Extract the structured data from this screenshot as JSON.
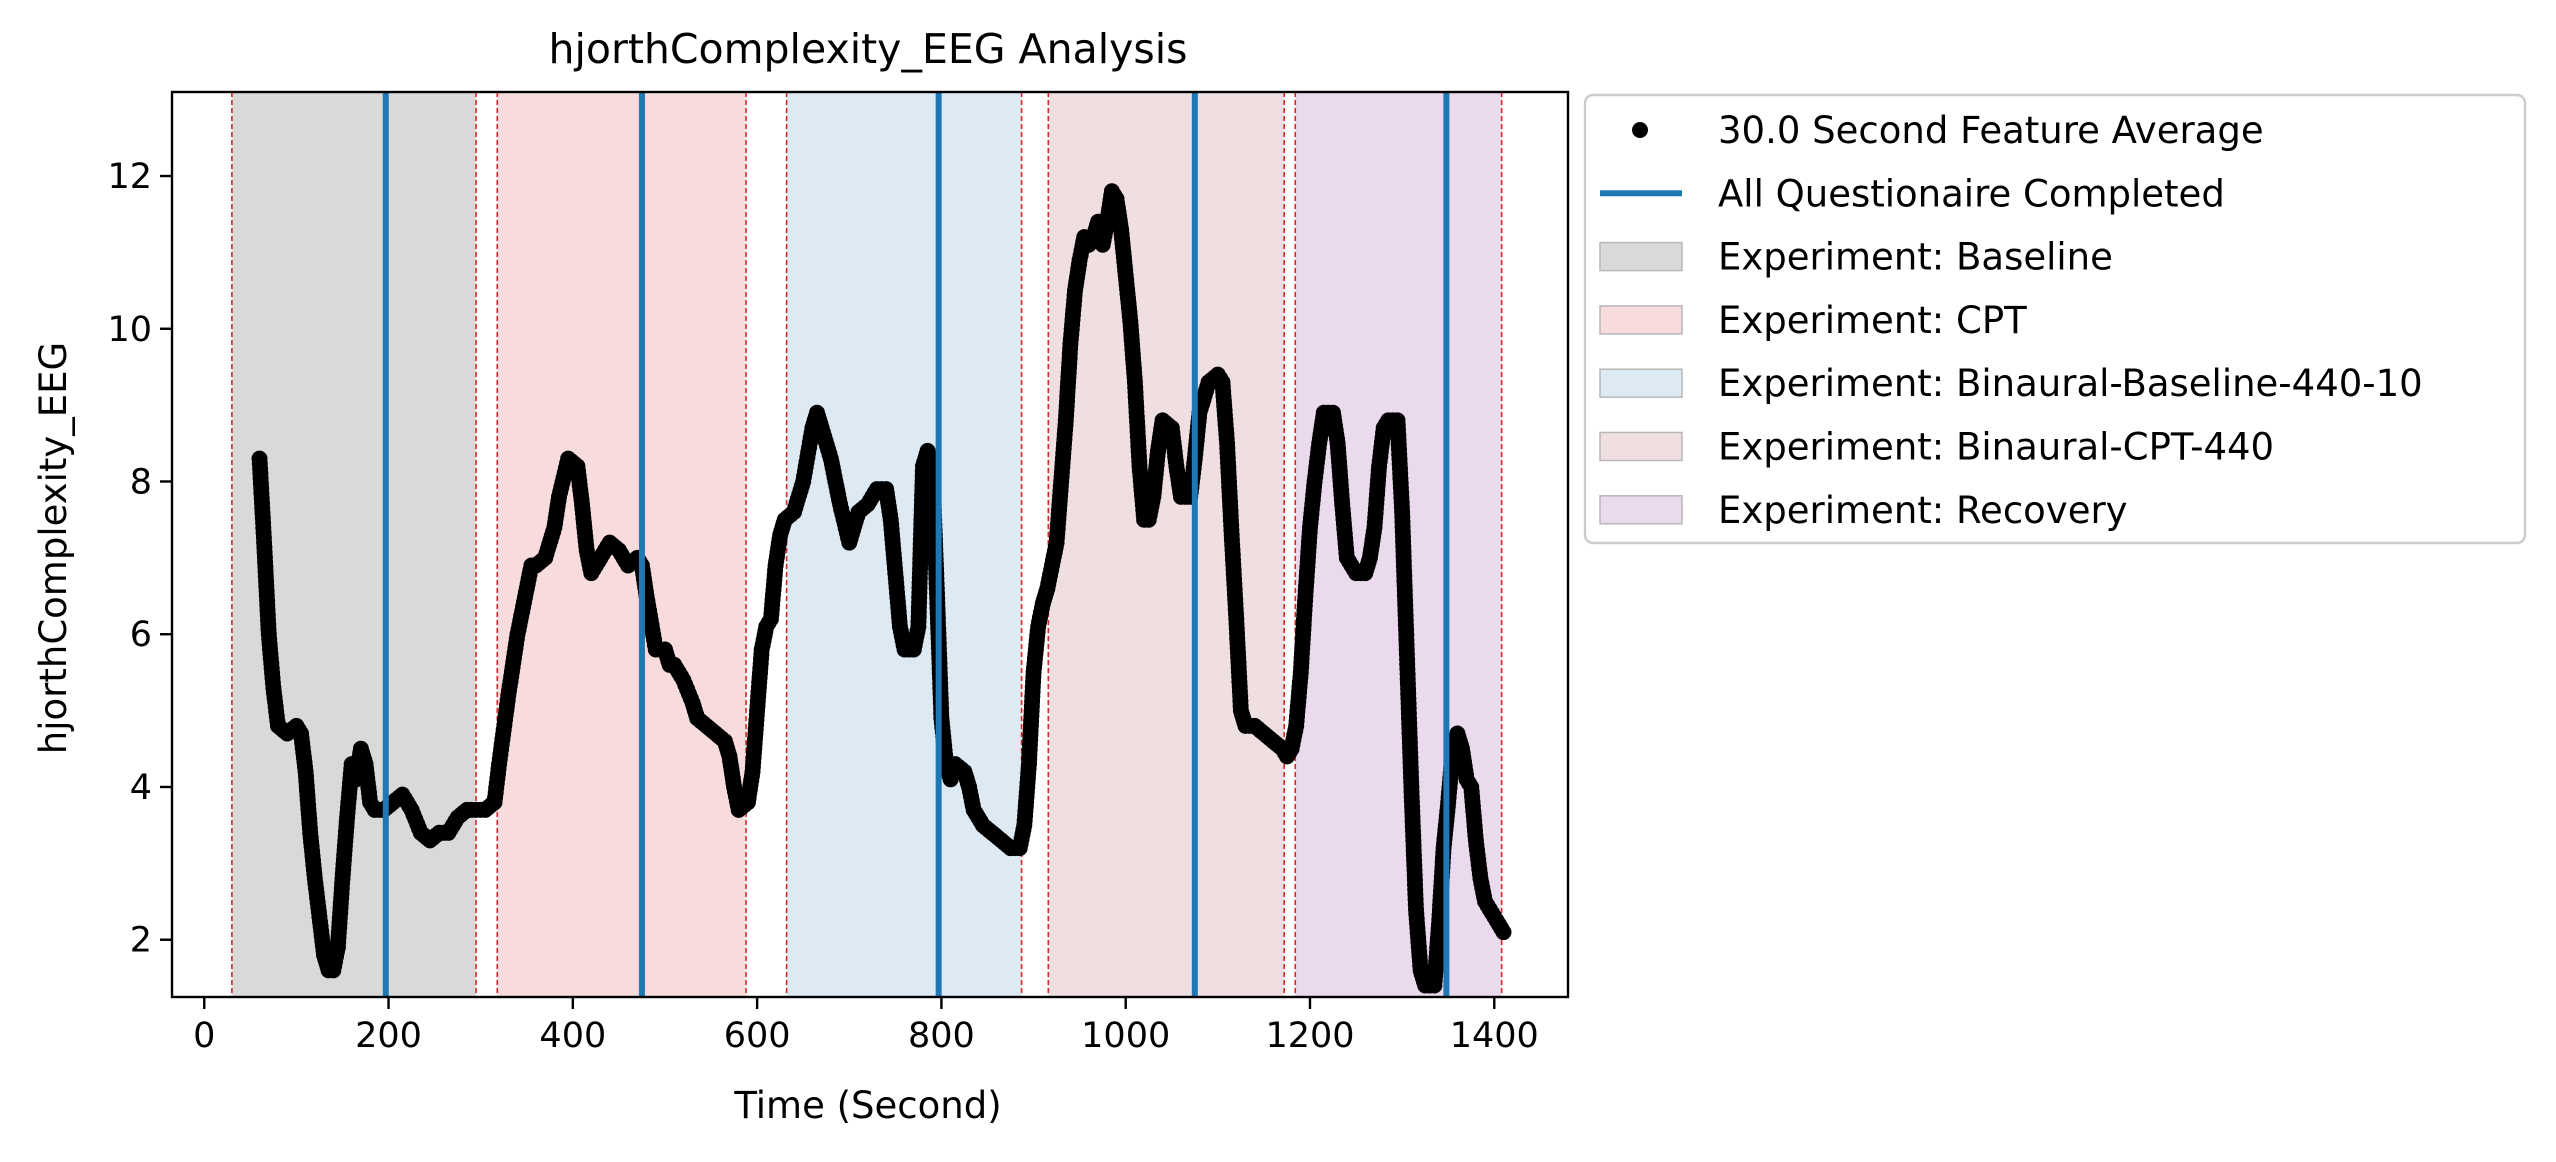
{
  "chart_data": {
    "type": "scatter",
    "title": "hjorthComplexity_EEG Analysis",
    "xlabel": "Time (Second)",
    "ylabel": "hjorthComplexity_EEG",
    "xlim": [
      -35,
      1480
    ],
    "ylim": [
      1.25,
      13.1
    ],
    "xticks": [
      0,
      200,
      400,
      600,
      800,
      1000,
      1200,
      1400
    ],
    "yticks": [
      2,
      4,
      6,
      8,
      10,
      12
    ],
    "grid": false,
    "legend": {
      "placement": "outside-upper-right",
      "entries": [
        {
          "label": "30.0 Second Feature Average",
          "kind": "marker",
          "color": "#000000"
        },
        {
          "label": "All Questionaire Completed",
          "kind": "line",
          "color": "#1f77b4"
        },
        {
          "label": "Experiment: Baseline",
          "kind": "patch",
          "color": "#d9d9d9"
        },
        {
          "label": "Experiment: CPT",
          "kind": "patch",
          "color": "#f8dcdd"
        },
        {
          "label": "Experiment: Binaural-Baseline-440-10",
          "kind": "patch",
          "color": "#dde9f3"
        },
        {
          "label": "Experiment: Binaural-CPT-440",
          "kind": "patch",
          "color": "#efdfe0"
        },
        {
          "label": "Experiment: Recovery",
          "kind": "patch",
          "color": "#ebdaee"
        }
      ]
    },
    "phases": [
      {
        "name": "Experiment: Baseline",
        "start": 30,
        "end": 295,
        "color": "#d9d9d9"
      },
      {
        "name": "Experiment: CPT",
        "start": 318,
        "end": 588,
        "color": "#f8dcdd"
      },
      {
        "name": "Experiment: Binaural-Baseline-440-10",
        "start": 632,
        "end": 887,
        "color": "#dde9f3"
      },
      {
        "name": "Experiment: Binaural-CPT-440",
        "start": 916,
        "end": 1172,
        "color": "#efdfe0"
      },
      {
        "name": "Experiment: Recovery",
        "start": 1184,
        "end": 1408,
        "color": "#ebdaee"
      }
    ],
    "questionnaire_completed": [
      197,
      475,
      797,
      1075,
      1348
    ],
    "series": [
      {
        "name": "30.0 Second Feature Average",
        "color": "#000000",
        "points": [
          [
            60,
            8.3
          ],
          [
            65,
            7.2
          ],
          [
            70,
            6.0
          ],
          [
            75,
            5.3
          ],
          [
            80,
            4.8
          ],
          [
            90,
            4.7
          ],
          [
            100,
            4.8
          ],
          [
            105,
            4.7
          ],
          [
            110,
            4.2
          ],
          [
            115,
            3.4
          ],
          [
            120,
            2.8
          ],
          [
            125,
            2.3
          ],
          [
            130,
            1.8
          ],
          [
            135,
            1.6
          ],
          [
            140,
            1.6
          ],
          [
            145,
            1.9
          ],
          [
            150,
            2.8
          ],
          [
            155,
            3.6
          ],
          [
            160,
            4.3
          ],
          [
            165,
            4.1
          ],
          [
            170,
            4.5
          ],
          [
            175,
            4.3
          ],
          [
            180,
            3.8
          ],
          [
            185,
            3.7
          ],
          [
            195,
            3.7
          ],
          [
            205,
            3.8
          ],
          [
            215,
            3.9
          ],
          [
            225,
            3.7
          ],
          [
            235,
            3.4
          ],
          [
            245,
            3.3
          ],
          [
            255,
            3.4
          ],
          [
            265,
            3.4
          ],
          [
            275,
            3.6
          ],
          [
            285,
            3.7
          ],
          [
            295,
            3.7
          ],
          [
            305,
            3.7
          ],
          [
            315,
            3.8
          ],
          [
            320,
            4.3
          ],
          [
            330,
            5.2
          ],
          [
            340,
            6.0
          ],
          [
            350,
            6.6
          ],
          [
            355,
            6.9
          ],
          [
            360,
            6.9
          ],
          [
            370,
            7.0
          ],
          [
            380,
            7.4
          ],
          [
            385,
            7.8
          ],
          [
            395,
            8.3
          ],
          [
            405,
            8.2
          ],
          [
            410,
            7.7
          ],
          [
            415,
            7.1
          ],
          [
            420,
            6.8
          ],
          [
            430,
            7.0
          ],
          [
            440,
            7.2
          ],
          [
            450,
            7.1
          ],
          [
            460,
            6.9
          ],
          [
            470,
            7.0
          ],
          [
            475,
            6.9
          ],
          [
            480,
            6.5
          ],
          [
            490,
            5.8
          ],
          [
            500,
            5.8
          ],
          [
            505,
            5.6
          ],
          [
            510,
            5.6
          ],
          [
            520,
            5.4
          ],
          [
            530,
            5.1
          ],
          [
            535,
            4.9
          ],
          [
            545,
            4.8
          ],
          [
            555,
            4.7
          ],
          [
            565,
            4.6
          ],
          [
            570,
            4.4
          ],
          [
            575,
            4.0
          ],
          [
            580,
            3.7
          ],
          [
            590,
            3.8
          ],
          [
            595,
            4.2
          ],
          [
            600,
            5.0
          ],
          [
            605,
            5.8
          ],
          [
            610,
            6.1
          ],
          [
            615,
            6.2
          ],
          [
            620,
            6.9
          ],
          [
            625,
            7.3
          ],
          [
            630,
            7.5
          ],
          [
            640,
            7.6
          ],
          [
            650,
            8.0
          ],
          [
            660,
            8.7
          ],
          [
            665,
            8.9
          ],
          [
            670,
            8.7
          ],
          [
            680,
            8.3
          ],
          [
            690,
            7.7
          ],
          [
            700,
            7.2
          ],
          [
            710,
            7.6
          ],
          [
            720,
            7.7
          ],
          [
            730,
            7.9
          ],
          [
            740,
            7.9
          ],
          [
            745,
            7.5
          ],
          [
            750,
            6.8
          ],
          [
            755,
            6.1
          ],
          [
            760,
            5.8
          ],
          [
            770,
            5.8
          ],
          [
            775,
            6.1
          ],
          [
            780,
            8.2
          ],
          [
            785,
            8.4
          ],
          [
            790,
            8.2
          ],
          [
            795,
            6.6
          ],
          [
            800,
            4.9
          ],
          [
            805,
            4.3
          ],
          [
            810,
            4.1
          ],
          [
            815,
            4.3
          ],
          [
            825,
            4.2
          ],
          [
            830,
            4.0
          ],
          [
            835,
            3.7
          ],
          [
            845,
            3.5
          ],
          [
            855,
            3.4
          ],
          [
            865,
            3.3
          ],
          [
            875,
            3.2
          ],
          [
            885,
            3.2
          ],
          [
            890,
            3.5
          ],
          [
            895,
            4.3
          ],
          [
            900,
            5.5
          ],
          [
            905,
            6.1
          ],
          [
            910,
            6.4
          ],
          [
            915,
            6.6
          ],
          [
            920,
            6.9
          ],
          [
            925,
            7.2
          ],
          [
            930,
            8.0
          ],
          [
            935,
            8.8
          ],
          [
            940,
            9.8
          ],
          [
            945,
            10.5
          ],
          [
            950,
            10.9
          ],
          [
            955,
            11.2
          ],
          [
            960,
            11.1
          ],
          [
            965,
            11.2
          ],
          [
            970,
            11.4
          ],
          [
            975,
            11.1
          ],
          [
            980,
            11.4
          ],
          [
            985,
            11.8
          ],
          [
            990,
            11.7
          ],
          [
            995,
            11.3
          ],
          [
            1000,
            10.7
          ],
          [
            1005,
            10.1
          ],
          [
            1010,
            9.3
          ],
          [
            1015,
            8.2
          ],
          [
            1020,
            7.5
          ],
          [
            1025,
            7.5
          ],
          [
            1030,
            7.8
          ],
          [
            1035,
            8.4
          ],
          [
            1040,
            8.8
          ],
          [
            1050,
            8.7
          ],
          [
            1055,
            8.2
          ],
          [
            1060,
            7.8
          ],
          [
            1070,
            7.8
          ],
          [
            1075,
            8.3
          ],
          [
            1080,
            8.9
          ],
          [
            1090,
            9.3
          ],
          [
            1100,
            9.4
          ],
          [
            1105,
            9.3
          ],
          [
            1110,
            8.5
          ],
          [
            1115,
            7.3
          ],
          [
            1120,
            6.2
          ],
          [
            1125,
            5.0
          ],
          [
            1130,
            4.8
          ],
          [
            1140,
            4.8
          ],
          [
            1150,
            4.7
          ],
          [
            1160,
            4.6
          ],
          [
            1170,
            4.5
          ],
          [
            1175,
            4.4
          ],
          [
            1180,
            4.5
          ],
          [
            1185,
            4.8
          ],
          [
            1190,
            5.5
          ],
          [
            1195,
            6.5
          ],
          [
            1200,
            7.4
          ],
          [
            1205,
            8.0
          ],
          [
            1210,
            8.5
          ],
          [
            1215,
            8.9
          ],
          [
            1225,
            8.9
          ],
          [
            1230,
            8.5
          ],
          [
            1235,
            7.7
          ],
          [
            1240,
            7.0
          ],
          [
            1250,
            6.8
          ],
          [
            1260,
            6.8
          ],
          [
            1265,
            7.0
          ],
          [
            1270,
            7.4
          ],
          [
            1275,
            8.2
          ],
          [
            1280,
            8.7
          ],
          [
            1285,
            8.8
          ],
          [
            1295,
            8.8
          ],
          [
            1300,
            7.6
          ],
          [
            1305,
            5.8
          ],
          [
            1310,
            4.0
          ],
          [
            1315,
            2.4
          ],
          [
            1320,
            1.6
          ],
          [
            1325,
            1.4
          ],
          [
            1335,
            1.4
          ],
          [
            1340,
            2.2
          ],
          [
            1345,
            3.2
          ],
          [
            1350,
            3.8
          ],
          [
            1355,
            4.5
          ],
          [
            1360,
            4.7
          ],
          [
            1365,
            4.5
          ],
          [
            1370,
            4.1
          ],
          [
            1375,
            4.0
          ],
          [
            1380,
            3.3
          ],
          [
            1385,
            2.8
          ],
          [
            1390,
            2.5
          ],
          [
            1395,
            2.4
          ],
          [
            1400,
            2.3
          ],
          [
            1405,
            2.2
          ],
          [
            1410,
            2.1
          ]
        ]
      }
    ]
  }
}
